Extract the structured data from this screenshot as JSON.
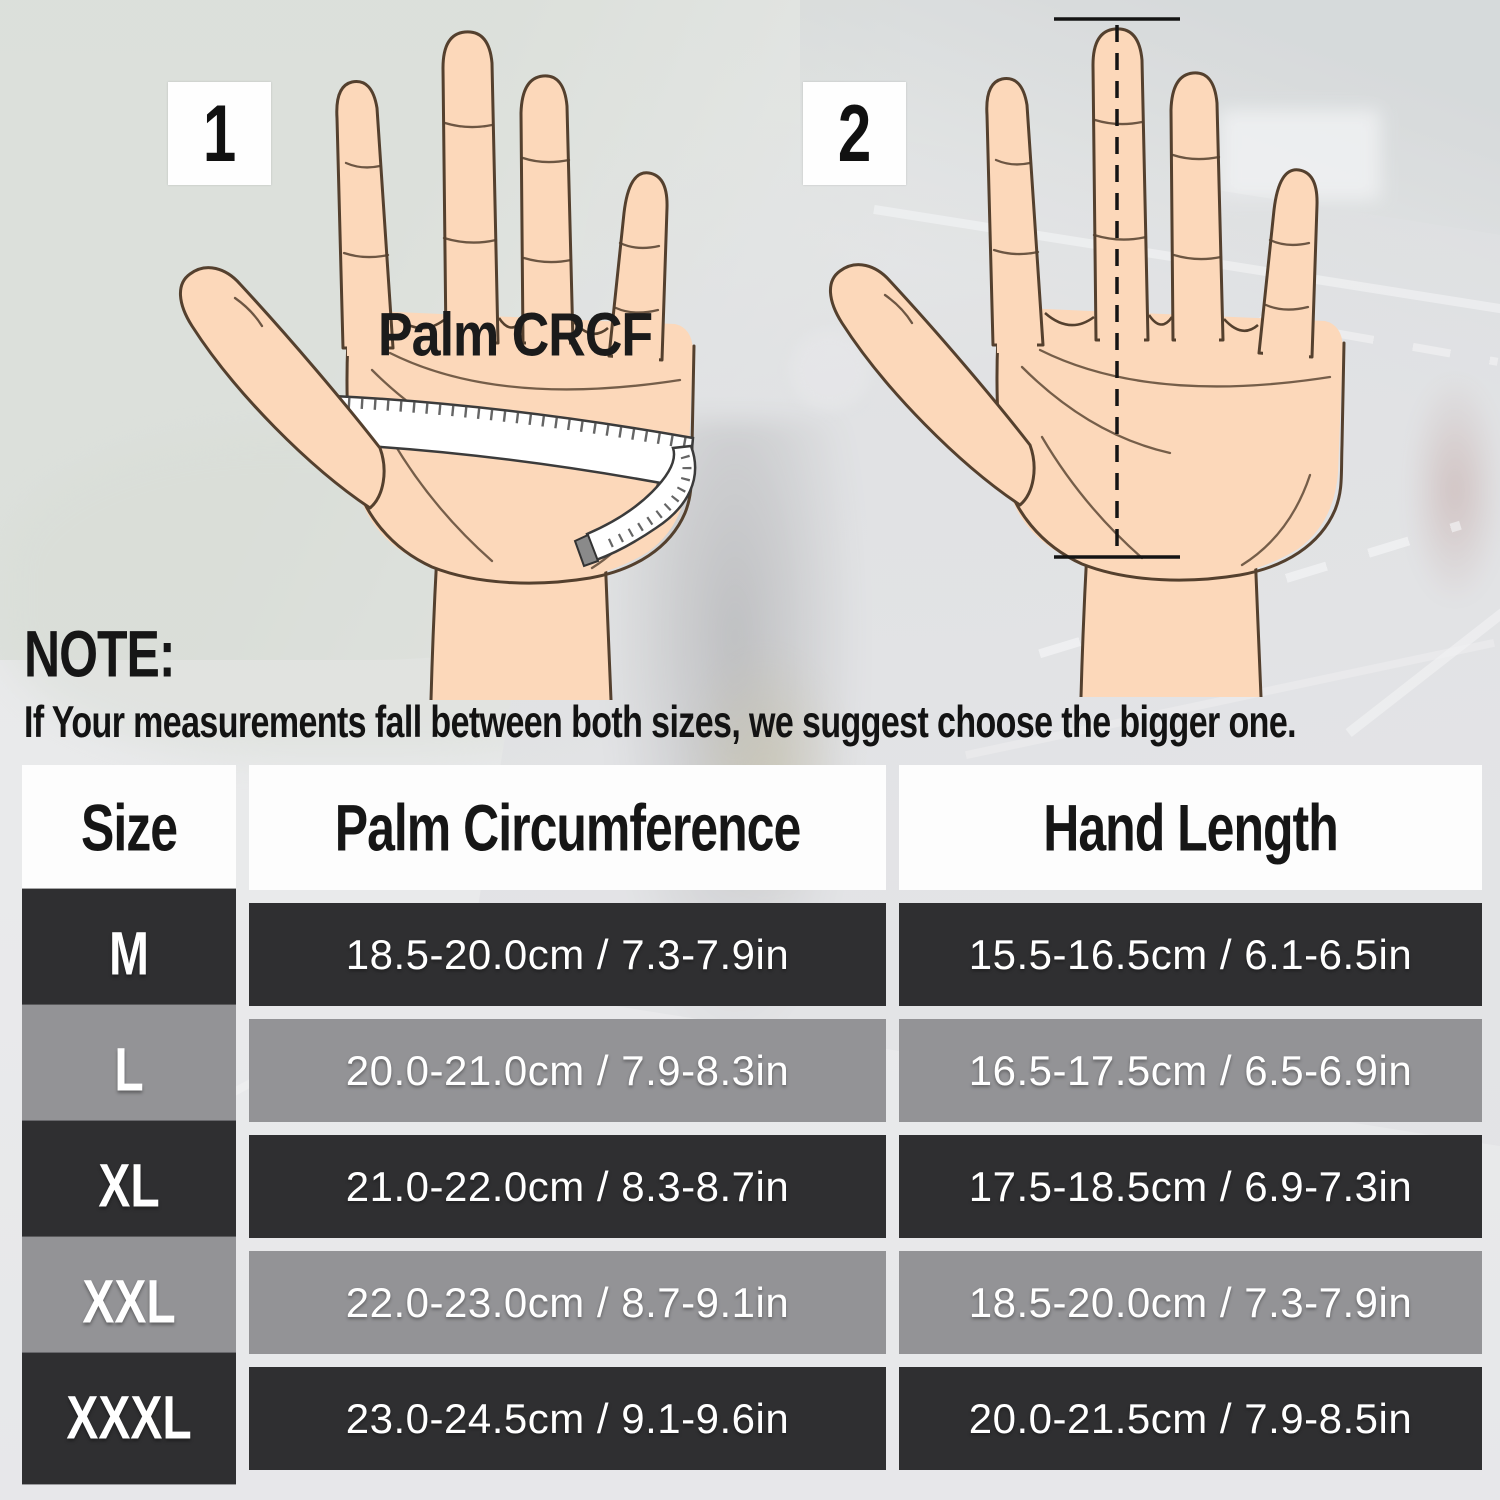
{
  "figures": {
    "step1": {
      "number": "1",
      "annotation": "Palm CRCF"
    },
    "step2": {
      "number": "2"
    }
  },
  "note": {
    "title": "NOTE:",
    "text": "If Your measurements fall between both sizes, we suggest choose the bigger one."
  },
  "size_table": {
    "columns": [
      "Size",
      "Palm Circumference",
      "Hand Length"
    ],
    "rows": [
      {
        "size": "M",
        "palm": "18.5-20.0cm / 7.3-7.9in",
        "hand": "15.5-16.5cm / 6.1-6.5in",
        "shade": "dark"
      },
      {
        "size": "L",
        "palm": "20.0-21.0cm / 7.9-8.3in",
        "hand": "16.5-17.5cm / 6.5-6.9in",
        "shade": "gray"
      },
      {
        "size": "XL",
        "palm": "21.0-22.0cm / 8.3-8.7in",
        "hand": "17.5-18.5cm / 6.9-7.3in",
        "shade": "dark"
      },
      {
        "size": "XXL",
        "palm": "22.0-23.0cm / 8.7-9.1in",
        "hand": "18.5-20.0cm / 7.3-7.9in",
        "shade": "gray"
      },
      {
        "size": "XXXL",
        "palm": "23.0-24.5cm / 9.1-9.6in",
        "hand": "20.0-21.5cm / 7.9-8.5in",
        "shade": "dark"
      }
    ]
  },
  "colors": {
    "row_dark": "#2f2f31",
    "row_gray": "#939396",
    "header_bg": "#fdfdfd",
    "text_light": "#ffffff",
    "text_dark": "#161616",
    "skin": "#fcd8ba",
    "outline": "#54402e"
  }
}
